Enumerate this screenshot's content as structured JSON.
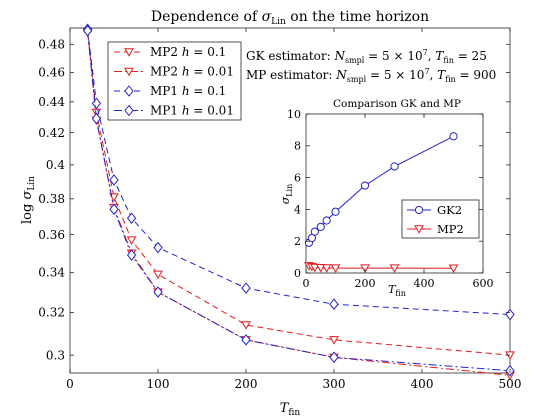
{
  "colors": {
    "red": "#e41a1c",
    "blue": "#2222cc",
    "axis": "#262626"
  },
  "annotations": {
    "gk": "GK estimator: N_smpl = 5 × 10^7, T_fin = 25",
    "mp": "MP estimator: N_smpl = 5 × 10^7, T_fin = 900"
  },
  "chart_data": [
    {
      "type": "line",
      "title": "Dependence of σ_Lin on the time horizon",
      "xlabel": "T_fin",
      "ylabel": "log σ_Lin",
      "xlim": [
        0,
        500
      ],
      "ylim": [
        0.292,
        0.492
      ],
      "log_y": true,
      "grid": false,
      "legend_position": "top-left",
      "x_ticks": [
        0,
        100,
        200,
        300,
        400,
        500
      ],
      "y_ticks": [
        0.3,
        0.32,
        0.34,
        0.36,
        0.38,
        0.4,
        0.42,
        0.44,
        0.46,
        0.48
      ],
      "x_tick_labels": [
        "0",
        "100",
        "200",
        "300",
        "400",
        "500"
      ],
      "y_tick_labels": [
        "0.3",
        "0.32",
        "0.34",
        "0.36",
        "0.38",
        "0.4",
        "0.42",
        "0.44",
        "0.46",
        "0.48"
      ],
      "series": [
        {
          "name": "MP2 h = 0.1",
          "color": "#e41a1c",
          "marker": "triangle-down",
          "dash": "dashed",
          "x": [
            20,
            30,
            50,
            70,
            100,
            200,
            300,
            500
          ],
          "y": [
            0.489,
            0.433,
            0.381,
            0.357,
            0.339,
            0.314,
            0.307,
            0.3
          ]
        },
        {
          "name": "MP2 h = 0.01",
          "color": "#e41a1c",
          "marker": "triangle-down",
          "dash": "dashdot",
          "x": [
            20,
            30,
            50,
            70,
            100,
            200,
            300,
            500
          ],
          "y": [
            0.489,
            0.428,
            0.375,
            0.35,
            0.33,
            0.307,
            0.299,
            0.291
          ]
        },
        {
          "name": "MP1 h = 0.1",
          "color": "#2222cc",
          "marker": "diamond",
          "dash": "dashed",
          "x": [
            20,
            30,
            50,
            70,
            100,
            200,
            300,
            500
          ],
          "y": [
            0.491,
            0.439,
            0.391,
            0.369,
            0.353,
            0.332,
            0.324,
            0.319
          ]
        },
        {
          "name": "MP1 h = 0.01",
          "color": "#2222cc",
          "marker": "diamond",
          "dash": "dashdot",
          "x": [
            20,
            30,
            50,
            70,
            100,
            200,
            300,
            500
          ],
          "y": [
            0.49,
            0.429,
            0.374,
            0.349,
            0.33,
            0.307,
            0.299,
            0.293
          ]
        }
      ]
    },
    {
      "type": "line",
      "title": "Comparison GK and MP",
      "xlabel": "T_fin",
      "ylabel": "σ_Lin",
      "xlim": [
        0,
        600
      ],
      "ylim": [
        0,
        10
      ],
      "grid": false,
      "legend_position": "right",
      "x_ticks": [
        0,
        200,
        400,
        600
      ],
      "y_ticks": [
        0,
        2,
        4,
        6,
        8,
        10
      ],
      "x_tick_labels": [
        "0",
        "200",
        "400",
        "600"
      ],
      "y_tick_labels": [
        "0",
        "2",
        "4",
        "6",
        "8",
        "10"
      ],
      "series": [
        {
          "name": "GK2",
          "color": "#2222cc",
          "marker": "circle",
          "dash": "solid",
          "x": [
            10,
            20,
            30,
            50,
            70,
            100,
            200,
            300,
            500
          ],
          "y": [
            1.9,
            2.2,
            2.6,
            2.9,
            3.3,
            3.85,
            5.5,
            6.7,
            8.6
          ]
        },
        {
          "name": "MP2",
          "color": "#e41a1c",
          "marker": "triangle-down",
          "dash": "solid",
          "x": [
            10,
            20,
            30,
            50,
            70,
            100,
            200,
            300,
            500
          ],
          "y": [
            0.45,
            0.4,
            0.35,
            0.33,
            0.32,
            0.31,
            0.31,
            0.31,
            0.3
          ]
        }
      ]
    }
  ]
}
